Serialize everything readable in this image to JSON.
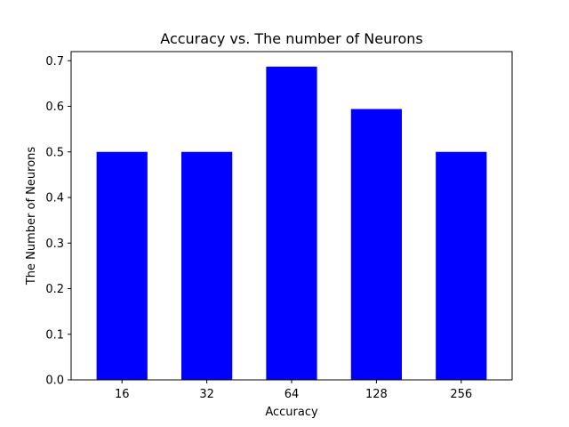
{
  "chart_data": {
    "type": "bar",
    "title": "Accuracy vs. The number of Neurons",
    "xlabel": "Accuracy",
    "ylabel": "The Number of Neurons",
    "categories": [
      "16",
      "32",
      "64",
      "128",
      "256"
    ],
    "values": [
      0.5,
      0.5,
      0.687,
      0.594,
      0.5
    ],
    "ylim": [
      0,
      0.72
    ],
    "yticks": [
      "0.0",
      "0.1",
      "0.2",
      "0.3",
      "0.4",
      "0.5",
      "0.6",
      "0.7"
    ],
    "bar_color": "#0000ff",
    "grid": false,
    "legend": "none"
  }
}
